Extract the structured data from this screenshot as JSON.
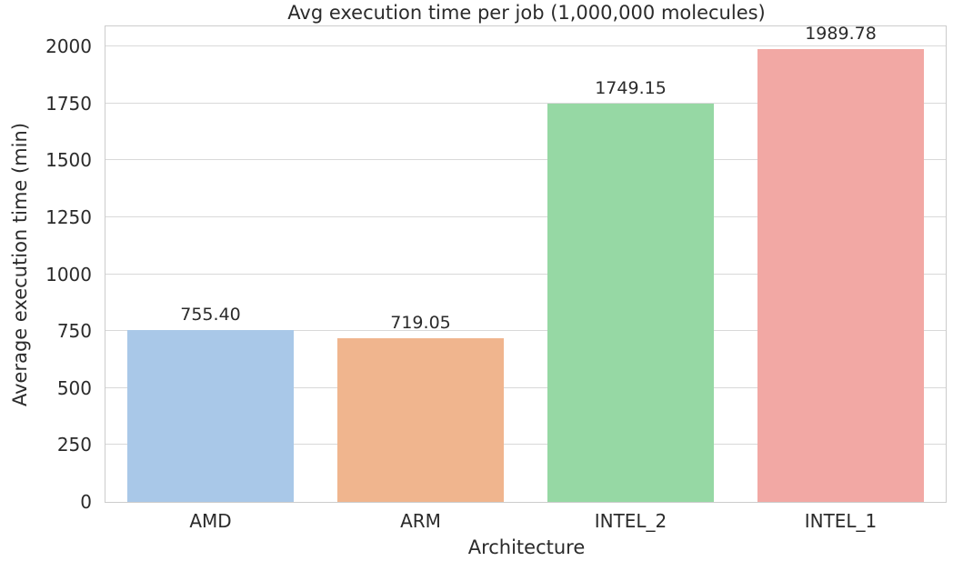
{
  "chart_data": {
    "type": "bar",
    "title": "Avg execution time per job (1,000,000 molecules)",
    "xlabel": "Architecture",
    "ylabel": "Average execution time (min)",
    "categories": [
      "AMD",
      "ARM",
      "INTEL_2",
      "INTEL_1"
    ],
    "values": [
      755.4,
      719.05,
      1749.15,
      1989.78
    ],
    "value_labels": [
      "755.40",
      "719.05",
      "1749.15",
      "1989.78"
    ],
    "bar_colors": [
      "#a9c8e8",
      "#f0b58e",
      "#96d8a4",
      "#f2a8a4"
    ],
    "yticks": [
      0,
      250,
      500,
      750,
      1000,
      1250,
      1500,
      1750,
      2000
    ],
    "ylim": [
      0,
      2089
    ],
    "grid": true,
    "legend": null,
    "grid_color": "#d9d9d9",
    "spine_color": "#cccccc",
    "text_color": "#2b2b2b",
    "background_color": "#ffffff"
  }
}
